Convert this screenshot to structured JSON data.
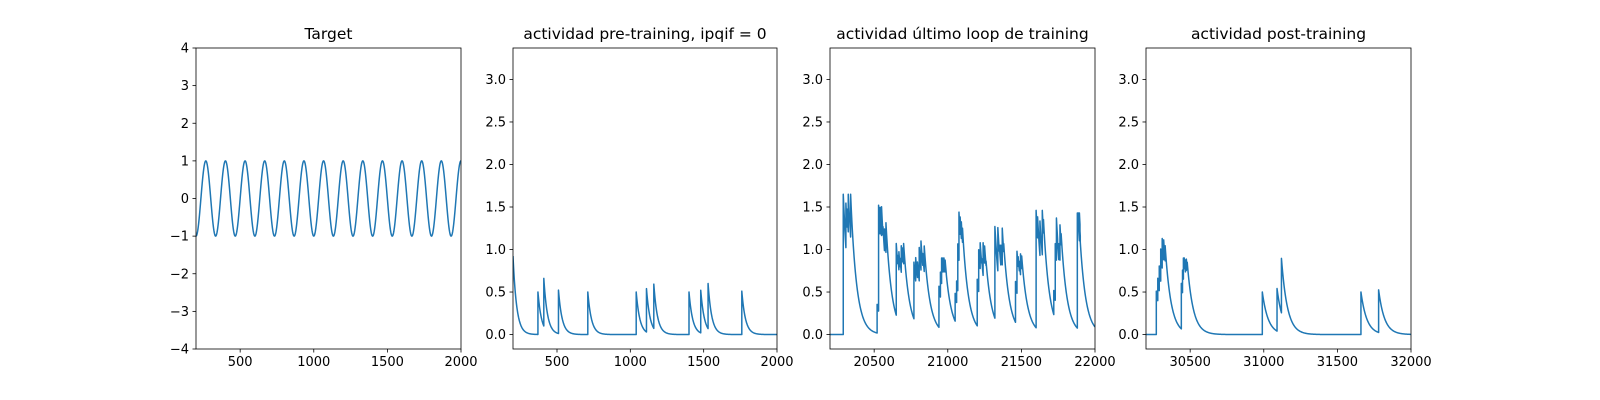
{
  "chart_data": [
    {
      "type": "line",
      "title": "Target",
      "xlabel": "",
      "ylabel": "",
      "xlim": [
        200,
        2000
      ],
      "ylim": [
        -4,
        4
      ],
      "xticks": [
        500,
        1000,
        1500,
        2000
      ],
      "yticks": [
        -4,
        -3,
        -2,
        -1,
        0,
        1,
        2,
        3,
        4
      ],
      "series": [
        {
          "color": "#1f77b4",
          "function": "cosine",
          "amplitude": 1,
          "period": 133.3,
          "phase_x": 200,
          "phase_value": -1
        }
      ]
    },
    {
      "type": "line",
      "title": "actividad pre-training, ipqif = 0",
      "xlabel": "",
      "ylabel": "",
      "xlim": [
        200,
        2000
      ],
      "ylim": [
        -0.17,
        3.37
      ],
      "xticks": [
        500,
        1000,
        1500,
        2000
      ],
      "yticks": [
        0.0,
        0.5,
        1.0,
        1.5,
        2.0,
        2.5,
        3.0
      ],
      "series": [
        {
          "color": "#1f77b4",
          "baseline": 0,
          "tau": 25,
          "initial": 1.0,
          "pulses": [
            [
              370,
              0.5
            ],
            [
              410,
              0.56
            ],
            [
              510,
              0.51
            ],
            [
              710,
              0.5
            ],
            [
              1040,
              0.5
            ],
            [
              1110,
              0.51
            ],
            [
              1160,
              0.52
            ],
            [
              1400,
              0.5
            ],
            [
              1480,
              0.5
            ],
            [
              1530,
              0.53
            ],
            [
              1760,
              0.51
            ]
          ]
        }
      ]
    },
    {
      "type": "line",
      "title": "actividad último loop de training",
      "xlabel": "",
      "ylabel": "",
      "xlim": [
        20200,
        22000
      ],
      "ylim": [
        -0.17,
        3.37
      ],
      "xticks": [
        20500,
        21000,
        21500,
        22000
      ],
      "yticks": [
        0.0,
        0.5,
        1.0,
        1.5,
        2.0,
        2.5,
        3.0
      ],
      "series": [
        {
          "color": "#1f77b4",
          "baseline": 0,
          "tau": 40,
          "initial": 0,
          "onset": 20290,
          "bursts": [
            [
              20290,
              20340,
              1.65
            ],
            [
              20520,
              20580,
              1.52
            ],
            [
              20650,
              20700,
              1.07
            ],
            [
              20770,
              20840,
              1.1
            ],
            [
              20940,
              20990,
              0.9
            ],
            [
              21050,
              21100,
              1.44
            ],
            [
              21200,
              21260,
              1.08
            ],
            [
              21320,
              21380,
              1.27
            ],
            [
              21460,
              21510,
              0.98
            ],
            [
              21600,
              21650,
              1.46
            ],
            [
              21720,
              21770,
              1.37
            ],
            [
              21880,
              21900,
              1.43
            ]
          ]
        }
      ]
    },
    {
      "type": "line",
      "title": "actividad post-training",
      "xlabel": "",
      "ylabel": "",
      "xlim": [
        30200,
        32000
      ],
      "ylim": [
        -0.17,
        3.37
      ],
      "xticks": [
        30500,
        31000,
        31500,
        32000
      ],
      "yticks": [
        0.0,
        0.5,
        1.0,
        1.5,
        2.0,
        2.5,
        3.0
      ],
      "series": [
        {
          "color": "#1f77b4",
          "baseline": 0,
          "tau": 40,
          "initial": 0,
          "onset": 30270,
          "bursts": [
            [
              30270,
              30330,
              1.13
            ],
            [
              30440,
              30480,
              0.9
            ]
          ],
          "pulses": [
            [
              30990,
              0.5
            ],
            [
              31090,
              0.5
            ],
            [
              31120,
              0.64
            ],
            [
              31660,
              0.5
            ],
            [
              31780,
              0.5
            ]
          ]
        }
      ]
    }
  ]
}
